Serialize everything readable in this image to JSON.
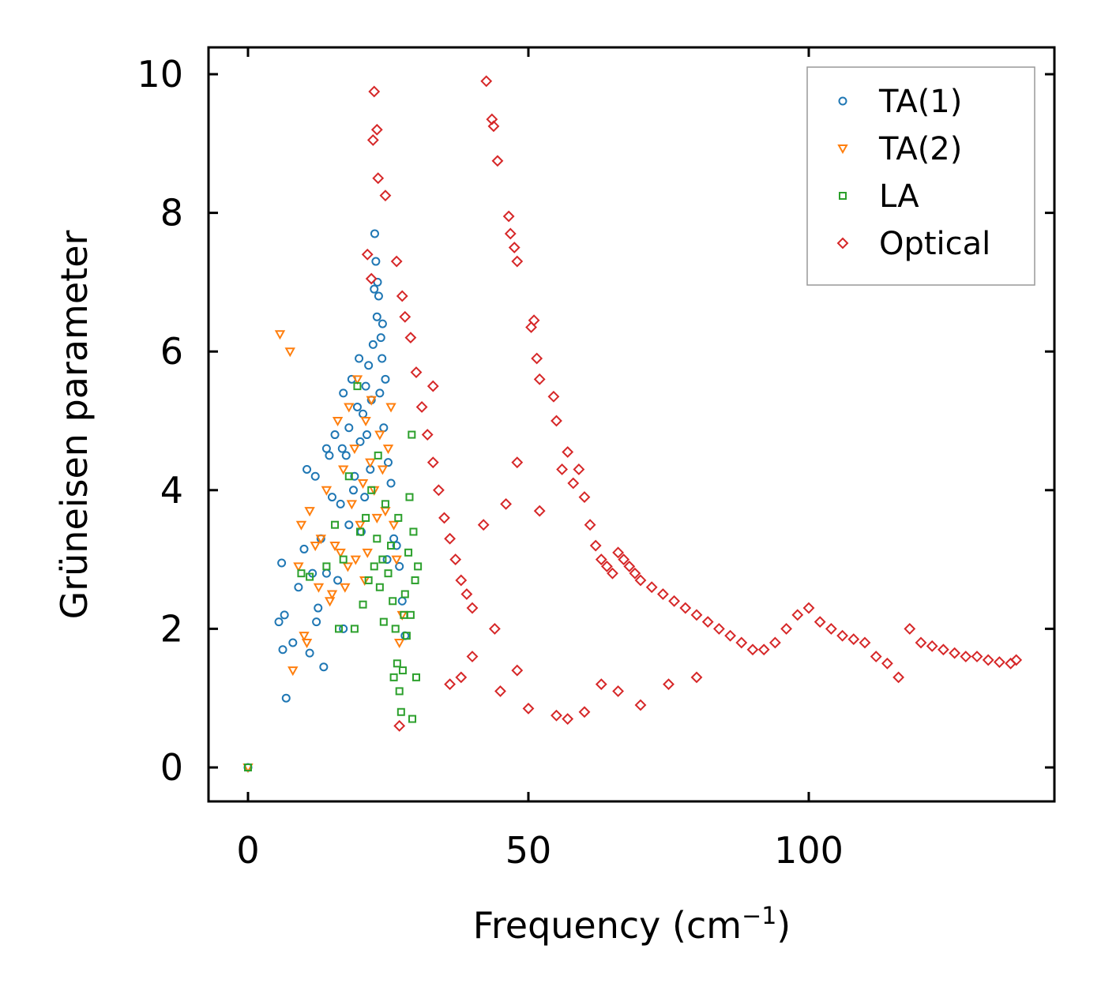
{
  "chart_data": {
    "type": "scatter",
    "title": "",
    "xlabel": "Frequency (cm",
    "xlabel_sup": "−1",
    "xlabel_close": ")",
    "ylabel": "Grüneisen parameter",
    "xlim": [
      -7,
      144
    ],
    "ylim": [
      -0.5,
      10.4
    ],
    "xticks": [
      0,
      50,
      100
    ],
    "xtick_labels": [
      "0",
      "50",
      "100"
    ],
    "yticks": [
      0,
      2,
      4,
      6,
      8,
      10
    ],
    "ytick_labels": [
      "0",
      "2",
      "4",
      "6",
      "8",
      "10"
    ],
    "grid": false,
    "legend_position": "top-right",
    "series": [
      {
        "name": "TA(1)",
        "color": "#1f77b4",
        "marker": "circle",
        "points": [
          [
            0,
            0
          ],
          [
            5.5,
            2.1
          ],
          [
            6,
            2.95
          ],
          [
            6.2,
            1.7
          ],
          [
            6.5,
            2.2
          ],
          [
            6.8,
            1.0
          ],
          [
            8,
            1.8
          ],
          [
            9,
            2.6
          ],
          [
            10,
            3.15
          ],
          [
            10.5,
            4.3
          ],
          [
            11,
            1.65
          ],
          [
            11.5,
            2.8
          ],
          [
            12,
            4.2
          ],
          [
            12.2,
            2.1
          ],
          [
            12.5,
            2.3
          ],
          [
            13,
            3.3
          ],
          [
            13.5,
            1.45
          ],
          [
            14,
            4.6
          ],
          [
            14.5,
            4.5
          ],
          [
            14,
            2.8
          ],
          [
            15,
            3.9
          ],
          [
            15.5,
            4.8
          ],
          [
            16,
            2.7
          ],
          [
            16.5,
            3.8
          ],
          [
            17,
            5.4
          ],
          [
            17,
            2.0
          ],
          [
            17.5,
            4.5
          ],
          [
            18,
            4.9
          ],
          [
            18.5,
            5.6
          ],
          [
            18,
            3.5
          ],
          [
            19,
            4.2
          ],
          [
            19.5,
            5.2
          ],
          [
            19.8,
            5.9
          ],
          [
            20,
            4.7
          ],
          [
            20.5,
            5.1
          ],
          [
            20.2,
            3.4
          ],
          [
            21,
            5.5
          ],
          [
            21.2,
            4.8
          ],
          [
            21.5,
            5.8
          ],
          [
            22,
            5.3
          ],
          [
            22.3,
            6.1
          ],
          [
            22.5,
            6.9
          ],
          [
            22.6,
            7.7
          ],
          [
            22.8,
            7.3
          ],
          [
            23,
            6.5
          ],
          [
            23.1,
            7.0
          ],
          [
            23.3,
            6.8
          ],
          [
            23.5,
            5.4
          ],
          [
            23.7,
            6.2
          ],
          [
            23.9,
            5.9
          ],
          [
            24,
            6.4
          ],
          [
            24.2,
            4.9
          ],
          [
            24.5,
            5.6
          ],
          [
            25,
            4.4
          ],
          [
            25.5,
            4.1
          ],
          [
            26,
            3.3
          ],
          [
            26.5,
            3.2
          ],
          [
            27,
            2.9
          ],
          [
            27.5,
            2.4
          ],
          [
            28,
            1.9
          ],
          [
            24.8,
            3.0
          ],
          [
            21.8,
            4.3
          ],
          [
            20.8,
            3.9
          ],
          [
            18.8,
            4.0
          ],
          [
            16.8,
            4.6
          ]
        ]
      },
      {
        "name": "TA(2)",
        "color": "#ff7f0e",
        "marker": "triangle-down",
        "points": [
          [
            0,
            0
          ],
          [
            5.7,
            6.25
          ],
          [
            7.5,
            6.0
          ],
          [
            8,
            1.4
          ],
          [
            9,
            2.9
          ],
          [
            9.5,
            3.5
          ],
          [
            10,
            1.9
          ],
          [
            10.5,
            1.8
          ],
          [
            11,
            3.7
          ],
          [
            12,
            3.2
          ],
          [
            13,
            3.3
          ],
          [
            14,
            4.0
          ],
          [
            15,
            2.5
          ],
          [
            15.5,
            3.2
          ],
          [
            16,
            5.0
          ],
          [
            16.5,
            3.1
          ],
          [
            17,
            4.3
          ],
          [
            17.8,
            2.9
          ],
          [
            18,
            5.2
          ],
          [
            18.5,
            3.8
          ],
          [
            19,
            4.6
          ],
          [
            19.5,
            5.6
          ],
          [
            20,
            3.5
          ],
          [
            20.5,
            4.1
          ],
          [
            21,
            5.0
          ],
          [
            21.3,
            3.1
          ],
          [
            21.8,
            4.4
          ],
          [
            22,
            5.3
          ],
          [
            22.5,
            4.0
          ],
          [
            23,
            3.6
          ],
          [
            23.5,
            4.8
          ],
          [
            24,
            4.3
          ],
          [
            24.5,
            3.7
          ],
          [
            25,
            4.6
          ],
          [
            25.5,
            5.2
          ],
          [
            26,
            3.5
          ],
          [
            26.5,
            3.0
          ],
          [
            27,
            1.8
          ],
          [
            27.5,
            2.2
          ],
          [
            17.3,
            2.6
          ],
          [
            14.6,
            2.4
          ],
          [
            12.6,
            2.6
          ],
          [
            19.2,
            3.0
          ],
          [
            20.8,
            2.7
          ]
        ]
      },
      {
        "name": "LA",
        "color": "#2ca02c",
        "marker": "square",
        "points": [
          [
            0,
            0
          ],
          [
            9.5,
            2.8
          ],
          [
            11,
            2.75
          ],
          [
            14,
            2.9
          ],
          [
            15.5,
            3.5
          ],
          [
            16.2,
            2.0
          ],
          [
            17,
            3.0
          ],
          [
            18,
            4.2
          ],
          [
            19,
            2.0
          ],
          [
            19.5,
            5.5
          ],
          [
            20,
            3.4
          ],
          [
            20.5,
            2.35
          ],
          [
            21,
            3.6
          ],
          [
            21.5,
            2.7
          ],
          [
            22,
            4.0
          ],
          [
            22.5,
            2.9
          ],
          [
            23,
            3.3
          ],
          [
            23.5,
            2.6
          ],
          [
            24,
            3.0
          ],
          [
            24.5,
            3.8
          ],
          [
            25,
            2.8
          ],
          [
            25.5,
            3.2
          ],
          [
            26,
            1.3
          ],
          [
            26.3,
            2.0
          ],
          [
            26.6,
            1.5
          ],
          [
            27,
            1.1
          ],
          [
            27.3,
            0.8
          ],
          [
            27.6,
            1.4
          ],
          [
            28,
            2.5
          ],
          [
            28.3,
            1.9
          ],
          [
            28.6,
            3.1
          ],
          [
            29,
            2.2
          ],
          [
            29.3,
            0.7
          ],
          [
            29.5,
            3.4
          ],
          [
            29.8,
            2.7
          ],
          [
            30,
            1.3
          ],
          [
            30.3,
            2.9
          ],
          [
            29.2,
            4.8
          ],
          [
            28.8,
            3.9
          ],
          [
            27.8,
            2.2
          ],
          [
            26.8,
            3.6
          ],
          [
            25.8,
            2.4
          ],
          [
            24.2,
            2.1
          ],
          [
            23.2,
            4.5
          ]
        ]
      },
      {
        "name": "Optical",
        "color": "#d62728",
        "marker": "diamond",
        "points": [
          [
            22.5,
            9.75
          ],
          [
            23,
            9.2
          ],
          [
            22.3,
            9.05
          ],
          [
            23.2,
            8.5
          ],
          [
            24.5,
            8.25
          ],
          [
            21.3,
            7.4
          ],
          [
            22,
            7.05
          ],
          [
            26.5,
            7.3
          ],
          [
            27.5,
            6.8
          ],
          [
            28,
            6.5
          ],
          [
            29,
            6.2
          ],
          [
            30,
            5.7
          ],
          [
            31,
            5.2
          ],
          [
            32,
            4.8
          ],
          [
            33,
            4.4
          ],
          [
            34,
            4.0
          ],
          [
            35,
            3.6
          ],
          [
            36,
            3.3
          ],
          [
            37,
            3.0
          ],
          [
            38,
            2.7
          ],
          [
            39,
            2.5
          ],
          [
            40,
            2.3
          ],
          [
            42.5,
            9.9
          ],
          [
            43.5,
            9.35
          ],
          [
            43.8,
            9.25
          ],
          [
            44.5,
            8.75
          ],
          [
            46.5,
            7.95
          ],
          [
            46.8,
            7.7
          ],
          [
            47.5,
            7.5
          ],
          [
            48,
            7.3
          ],
          [
            50.5,
            6.35
          ],
          [
            51,
            6.45
          ],
          [
            51.5,
            5.9
          ],
          [
            52,
            5.6
          ],
          [
            54.5,
            5.35
          ],
          [
            55,
            5.0
          ],
          [
            56,
            4.3
          ],
          [
            57,
            4.55
          ],
          [
            58,
            4.1
          ],
          [
            59,
            4.3
          ],
          [
            60,
            3.9
          ],
          [
            61,
            3.5
          ],
          [
            62,
            3.2
          ],
          [
            63,
            3.0
          ],
          [
            64,
            2.9
          ],
          [
            65,
            2.8
          ],
          [
            66,
            3.1
          ],
          [
            67,
            3.0
          ],
          [
            68,
            2.9
          ],
          [
            69,
            2.8
          ],
          [
            70,
            2.7
          ],
          [
            72,
            2.6
          ],
          [
            74,
            2.5
          ],
          [
            76,
            2.4
          ],
          [
            78,
            2.3
          ],
          [
            80,
            2.2
          ],
          [
            82,
            2.1
          ],
          [
            84,
            2.0
          ],
          [
            86,
            1.9
          ],
          [
            88,
            1.8
          ],
          [
            90,
            1.7
          ],
          [
            92,
            1.7
          ],
          [
            94,
            1.8
          ],
          [
            96,
            2.0
          ],
          [
            98,
            2.2
          ],
          [
            100,
            2.3
          ],
          [
            102,
            2.1
          ],
          [
            104,
            2.0
          ],
          [
            106,
            1.9
          ],
          [
            108,
            1.85
          ],
          [
            110,
            1.8
          ],
          [
            112,
            1.6
          ],
          [
            114,
            1.5
          ],
          [
            116,
            1.3
          ],
          [
            118,
            2.0
          ],
          [
            120,
            1.8
          ],
          [
            122,
            1.75
          ],
          [
            124,
            1.7
          ],
          [
            126,
            1.65
          ],
          [
            128,
            1.6
          ],
          [
            130,
            1.6
          ],
          [
            132,
            1.55
          ],
          [
            134,
            1.52
          ],
          [
            136,
            1.5
          ],
          [
            137,
            1.55
          ],
          [
            27,
            0.6
          ],
          [
            33,
            5.5
          ],
          [
            45,
            1.1
          ],
          [
            50,
            0.85
          ],
          [
            55,
            0.75
          ],
          [
            57,
            0.7
          ],
          [
            60,
            0.8
          ],
          [
            63,
            1.2
          ],
          [
            66,
            1.1
          ],
          [
            70,
            0.9
          ],
          [
            75,
            1.2
          ],
          [
            80,
            1.3
          ],
          [
            42,
            3.5
          ],
          [
            46,
            3.8
          ],
          [
            48,
            4.4
          ],
          [
            52,
            3.7
          ],
          [
            36,
            1.2
          ],
          [
            38,
            1.3
          ],
          [
            40,
            1.6
          ],
          [
            44,
            2.0
          ],
          [
            48,
            1.4
          ]
        ]
      }
    ]
  }
}
